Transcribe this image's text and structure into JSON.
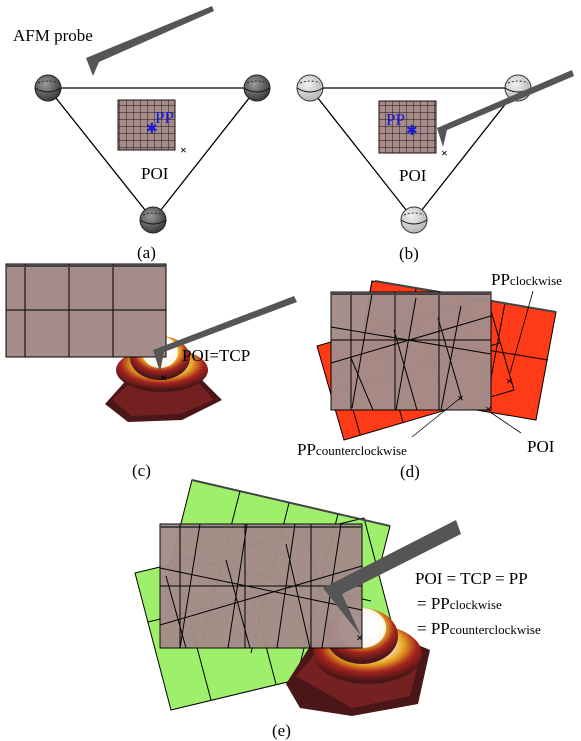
{
  "panel_a": {
    "probe_label": "AFM probe",
    "pp_label": "PP",
    "poi_label": "POI",
    "caption": "(a)"
  },
  "panel_b": {
    "pp_label": "PP",
    "poi_label": "POI",
    "caption": "(b)"
  },
  "panel_c": {
    "poi_tcp_label": "POI=TCP",
    "caption": "(c)"
  },
  "panel_d": {
    "pp_clockwise_main": "PP",
    "pp_clockwise_sub": "clockwise",
    "pp_counterclockwise_main": "PP",
    "pp_counterclockwise_sub": "counterclockwise",
    "poi_label": "POI",
    "caption": "(d)"
  },
  "panel_e": {
    "line1": "POI = TCP = PP",
    "line2_prefix": "= PP",
    "line2_sub": "clockwise",
    "line3_prefix": "= PP",
    "line3_sub": "counterclockwise",
    "caption": "(e)"
  },
  "colors": {
    "grid_fill": "#a58c8a",
    "clockwise_fill": "#ff3a16",
    "green_fill": "#9ef06c",
    "probe": "#555555",
    "pp_marker": "#1a1ad6"
  }
}
